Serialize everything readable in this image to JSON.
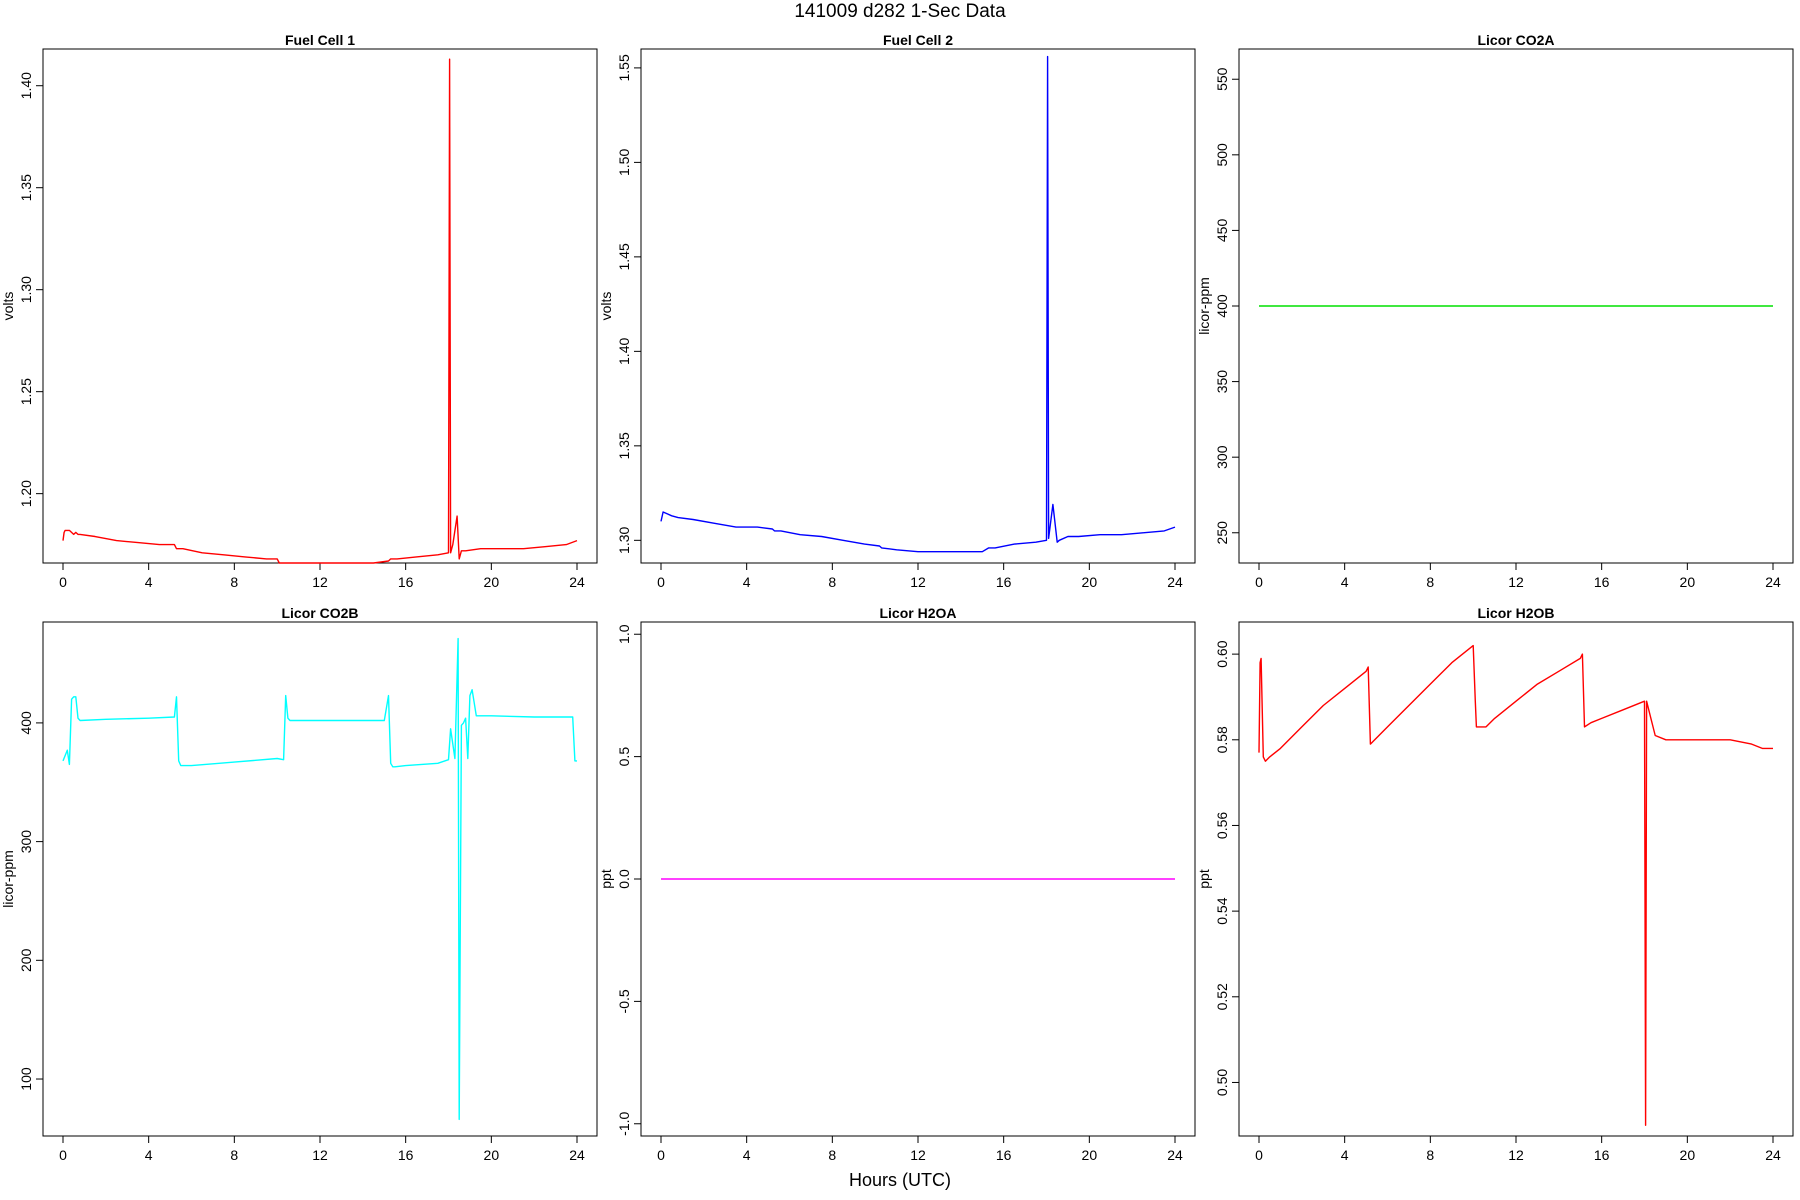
{
  "title": "141009   d282   1-Sec Data",
  "xlabel": "Hours (UTC)",
  "chart_data": [
    {
      "type": "line",
      "title": "Fuel Cell 1",
      "ylabel": "volts",
      "color": "#ff0000",
      "xlim": [
        0,
        24
      ],
      "ylim": [
        1.166,
        1.418
      ],
      "xticks": [
        0,
        4,
        8,
        12,
        16,
        20,
        24
      ],
      "yticks": [
        1.2,
        1.25,
        1.3,
        1.35,
        1.4
      ],
      "ytick_labels": [
        "1.20",
        "1.25",
        "1.30",
        "1.35",
        "1.40"
      ],
      "x": [
        0,
        0.05,
        0.1,
        0.3,
        0.5,
        0.6,
        0.7,
        0.8,
        1.5,
        2.5,
        3.5,
        4.5,
        5.2,
        5.3,
        5.6,
        6.5,
        7.5,
        8.5,
        9.5,
        10,
        10.1,
        10.5,
        11,
        11.5,
        12.5,
        13.5,
        14.5,
        15.2,
        15.3,
        15.6,
        16.5,
        17.5,
        18.0,
        18.05,
        18.1,
        18.2,
        18.4,
        18.5,
        18.6,
        18.8,
        19.5,
        20.5,
        21.5,
        22.5,
        23.5,
        24
      ],
      "y": [
        1.177,
        1.181,
        1.182,
        1.182,
        1.18,
        1.181,
        1.18,
        1.18,
        1.179,
        1.177,
        1.176,
        1.175,
        1.175,
        1.173,
        1.173,
        1.171,
        1.17,
        1.169,
        1.168,
        1.168,
        1.166,
        1.166,
        1.166,
        1.166,
        1.166,
        1.166,
        1.166,
        1.167,
        1.168,
        1.168,
        1.169,
        1.17,
        1.171,
        1.413,
        1.171,
        1.175,
        1.189,
        1.168,
        1.172,
        1.172,
        1.173,
        1.173,
        1.173,
        1.174,
        1.175,
        1.177
      ]
    },
    {
      "type": "line",
      "title": "Fuel Cell 2",
      "ylabel": "volts",
      "color": "#0000ff",
      "xlim": [
        0,
        24
      ],
      "ylim": [
        1.288,
        1.56
      ],
      "xticks": [
        0,
        4,
        8,
        12,
        16,
        20,
        24
      ],
      "yticks": [
        1.3,
        1.35,
        1.4,
        1.45,
        1.5,
        1.55
      ],
      "ytick_labels": [
        "1.30",
        "1.35",
        "1.40",
        "1.45",
        "1.50",
        "1.55"
      ],
      "x": [
        0,
        0.1,
        0.3,
        0.5,
        0.8,
        1.5,
        2.5,
        3.5,
        4.5,
        5.2,
        5.3,
        5.6,
        6.5,
        7.5,
        8.5,
        9.5,
        10.2,
        10.3,
        11,
        12,
        13,
        14,
        15,
        15.3,
        15.6,
        16.5,
        17.5,
        18.0,
        18.05,
        18.1,
        18.3,
        18.5,
        18.6,
        19.0,
        19.5,
        20.5,
        21.5,
        22.5,
        23.5,
        24
      ],
      "y": [
        1.31,
        1.315,
        1.314,
        1.313,
        1.312,
        1.311,
        1.309,
        1.307,
        1.307,
        1.306,
        1.305,
        1.305,
        1.303,
        1.302,
        1.3,
        1.298,
        1.297,
        1.296,
        1.295,
        1.294,
        1.294,
        1.294,
        1.294,
        1.296,
        1.296,
        1.298,
        1.299,
        1.3,
        1.556,
        1.301,
        1.319,
        1.299,
        1.3,
        1.302,
        1.302,
        1.303,
        1.303,
        1.304,
        1.305,
        1.307
      ]
    },
    {
      "type": "line",
      "title": "Licor CO2A",
      "ylabel": "licor-ppm",
      "color": "#00e000",
      "xlim": [
        0,
        24
      ],
      "ylim": [
        230,
        570
      ],
      "xticks": [
        0,
        4,
        8,
        12,
        16,
        20,
        24
      ],
      "yticks": [
        250,
        300,
        350,
        400,
        450,
        500,
        550
      ],
      "ytick_labels": [
        "250",
        "300",
        "350",
        "400",
        "450",
        "500",
        "550"
      ],
      "x": [
        0,
        24
      ],
      "y": [
        400,
        400
      ]
    },
    {
      "type": "line",
      "title": "Licor CO2B",
      "ylabel": "licor-ppm",
      "color": "#00ffff",
      "xlim": [
        0,
        24
      ],
      "ylim": [
        52,
        485
      ],
      "xticks": [
        0,
        4,
        8,
        12,
        16,
        20,
        24
      ],
      "yticks": [
        100,
        200,
        300,
        400
      ],
      "ytick_labels": [
        "100",
        "200",
        "300",
        "400"
      ],
      "x": [
        0,
        0.2,
        0.3,
        0.4,
        0.5,
        0.6,
        0.7,
        0.8,
        2,
        4,
        5.2,
        5.3,
        5.4,
        5.5,
        6,
        8,
        10,
        10.3,
        10.4,
        10.5,
        10.6,
        11,
        13,
        15,
        15.2,
        15.3,
        15.4,
        15.5,
        16,
        17.5,
        18.0,
        18.1,
        18.3,
        18.45,
        18.5,
        18.6,
        18.7,
        18.8,
        18.9,
        19.0,
        19.1,
        19.3,
        20,
        22,
        23.8,
        23.9,
        24
      ],
      "y": [
        368,
        377,
        365,
        420,
        422,
        422,
        404,
        402,
        403,
        404,
        405,
        422,
        368,
        364,
        364,
        367,
        370,
        369,
        423,
        404,
        402,
        402,
        402,
        402,
        423,
        366,
        363,
        363,
        364,
        366,
        369,
        395,
        370,
        471,
        66,
        398,
        400,
        404,
        370,
        423,
        428,
        406,
        406,
        405,
        405,
        368,
        368
      ]
    },
    {
      "type": "line",
      "title": "Licor H2OA",
      "ylabel": "ppt",
      "color": "#ff00ff",
      "xlim": [
        0,
        24
      ],
      "ylim": [
        -1.05,
        1.05
      ],
      "xticks": [
        0,
        4,
        8,
        12,
        16,
        20,
        24
      ],
      "yticks": [
        -1.0,
        -0.5,
        0.0,
        0.5,
        1.0
      ],
      "ytick_labels": [
        "-1.0",
        "-0.5",
        "0.0",
        "0.5",
        "1.0"
      ],
      "x": [
        0,
        24
      ],
      "y": [
        0,
        0
      ]
    },
    {
      "type": "line",
      "title": "Licor H2OB",
      "ylabel": "ppt",
      "color": "#ff0000",
      "xlim": [
        0,
        24
      ],
      "ylim": [
        0.4875,
        0.6075
      ],
      "xticks": [
        0,
        4,
        8,
        12,
        16,
        20,
        24
      ],
      "yticks": [
        0.5,
        0.52,
        0.54,
        0.56,
        0.58,
        0.6
      ],
      "ytick_labels": [
        "0.50",
        "0.52",
        "0.54",
        "0.56",
        "0.58",
        "0.60"
      ],
      "x": [
        0,
        0.05,
        0.1,
        0.2,
        0.3,
        0.5,
        1,
        2,
        3,
        4,
        5,
        5.1,
        5.2,
        6,
        7,
        8,
        9,
        10,
        10.1,
        10.15,
        10.6,
        11,
        12,
        13,
        14,
        15,
        15.1,
        15.2,
        15.5,
        16,
        17,
        18,
        18.05,
        18.1,
        18.3,
        18.5,
        19,
        20,
        21,
        22,
        23,
        23.5,
        24
      ],
      "y": [
        0.577,
        0.598,
        0.599,
        0.576,
        0.575,
        0.576,
        0.578,
        0.583,
        0.588,
        0.592,
        0.596,
        0.597,
        0.579,
        0.583,
        0.588,
        0.593,
        0.598,
        0.602,
        0.589,
        0.583,
        0.583,
        0.585,
        0.589,
        0.593,
        0.596,
        0.599,
        0.6,
        0.583,
        0.584,
        0.585,
        0.587,
        0.589,
        0.49,
        0.589,
        0.585,
        0.581,
        0.58,
        0.58,
        0.58,
        0.58,
        0.579,
        0.578,
        0.578
      ]
    }
  ]
}
